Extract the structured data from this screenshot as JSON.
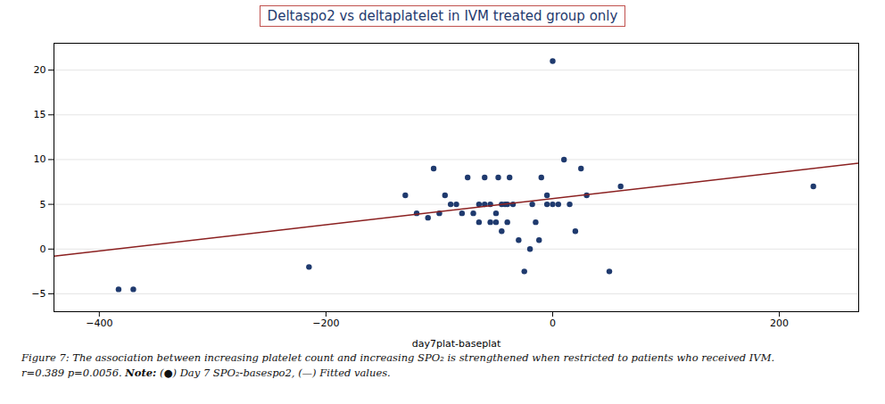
{
  "chart_data": {
    "type": "scatter",
    "title": "Deltaspo2 vs deltaplatelet in IVM treated group only",
    "title_color": "#1F3A6E",
    "title_box_color": "#C0504D",
    "xlabel": "day7plat-baseplat",
    "xlim": [
      -440,
      270
    ],
    "ylim": [
      -7,
      23
    ],
    "xticks": [
      -400,
      -200,
      0,
      200
    ],
    "yticks": [
      -5,
      0,
      5,
      10,
      15,
      20
    ],
    "grid": "y",
    "series": [
      {
        "type": "scatter",
        "marker": "circle",
        "color": "#1F3A6E",
        "x": [
          -383,
          -370,
          -215,
          -130,
          -120,
          -110,
          -105,
          -100,
          -95,
          -90,
          -85,
          -80,
          -75,
          -70,
          -65,
          -65,
          -60,
          -60,
          -55,
          -55,
          -50,
          -50,
          -48,
          -45,
          -45,
          -42,
          -40,
          -40,
          -38,
          -35,
          -30,
          -25,
          -20,
          -18,
          -15,
          -12,
          -10,
          -5,
          -5,
          0,
          0,
          5,
          10,
          15,
          20,
          25,
          30,
          50,
          60,
          230
        ],
        "values": [
          -4.5,
          -4.5,
          -2,
          6,
          4,
          3.5,
          9,
          4,
          6,
          5,
          5,
          4,
          8,
          4,
          5,
          3,
          5,
          8,
          5,
          3,
          3,
          4,
          8,
          5,
          2,
          5,
          5,
          3,
          8,
          5,
          1,
          -2.5,
          0,
          5,
          3,
          1,
          8,
          6,
          5,
          5,
          21,
          5,
          10,
          5,
          2,
          9,
          6,
          -2.5,
          7,
          7
        ]
      },
      {
        "type": "line",
        "line_style": "solid",
        "color": "#8B2020",
        "x": [
          -440,
          270
        ],
        "values": [
          -0.8,
          9.6
        ]
      }
    ],
    "annotations": [
      "Figure 7: The association between increasing platelet count and increasing SPO₂ is strengthened when restricted to patients who received IVM.",
      "r=0.389 p=0.0056. ",
      "Note:",
      " (●) Day 7 SPO₂-basespo2, (—) Fitted values."
    ]
  }
}
